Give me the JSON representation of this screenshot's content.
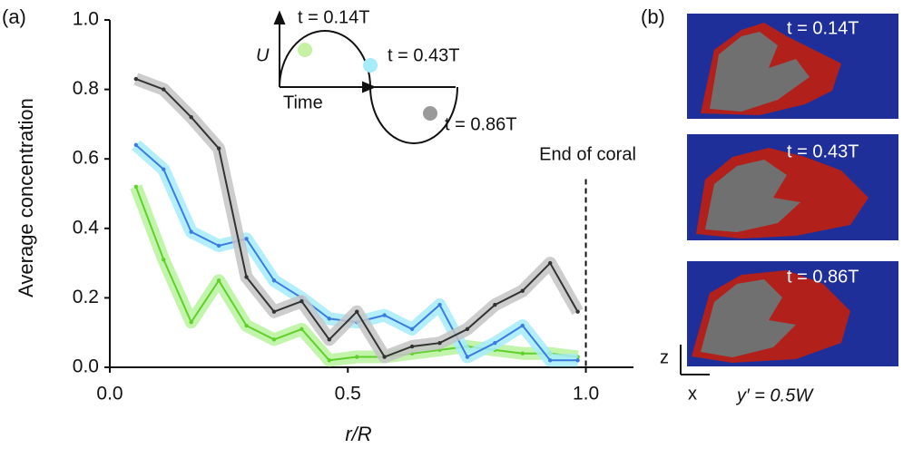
{
  "chart_data": {
    "type": "line",
    "panel_label": "(a)",
    "xlabel": "r/R",
    "ylabel": "Average concentration",
    "x": [
      0.055,
      0.113,
      0.171,
      0.229,
      0.287,
      0.345,
      0.403,
      0.461,
      0.519,
      0.577,
      0.635,
      0.693,
      0.751,
      0.809,
      0.867,
      0.925,
      0.983
    ],
    "series": [
      {
        "name": "t = 0.14T",
        "color": "#5fd02c",
        "band_color": "#b8f29c",
        "values": [
          0.52,
          0.31,
          0.13,
          0.25,
          0.12,
          0.08,
          0.11,
          0.02,
          0.03,
          0.03,
          0.04,
          0.05,
          0.06,
          0.05,
          0.04,
          0.04,
          0.03
        ]
      },
      {
        "name": "t = 0.43T",
        "color": "#3a7de0",
        "band_color": "#a6ecfa",
        "values": [
          0.64,
          0.57,
          0.39,
          0.35,
          0.37,
          0.25,
          0.2,
          0.14,
          0.13,
          0.15,
          0.11,
          0.18,
          0.03,
          0.07,
          0.12,
          0.02,
          0.02
        ]
      },
      {
        "name": "t = 0.86T",
        "color": "#333333",
        "band_color": "#c4c4c4",
        "values": [
          0.83,
          0.8,
          0.72,
          0.63,
          0.26,
          0.16,
          0.19,
          0.08,
          0.16,
          0.03,
          0.06,
          0.07,
          0.11,
          0.18,
          0.22,
          0.3,
          0.16
        ]
      }
    ],
    "xlim": [
      0,
      1.1
    ],
    "ylim": [
      0,
      1
    ],
    "xticks": [
      {
        "value": 0,
        "label": "0.0"
      },
      0.5,
      {
        "value": 1,
        "label": "1.0"
      }
    ],
    "yticks": [
      {
        "value": 0,
        "label": "0.0"
      },
      0.2,
      0.4,
      0.6,
      0.8,
      {
        "value": 1,
        "label": "1.0"
      }
    ],
    "marker_line": {
      "x": 1,
      "label": "End of coral"
    },
    "inset": {
      "ylabel": "U",
      "xlabel": "Time"
    }
  },
  "panel_b": {
    "label": "(b)",
    "axis_z": "z",
    "axis_x": "x",
    "slice": "y′ = 0.5W"
  }
}
